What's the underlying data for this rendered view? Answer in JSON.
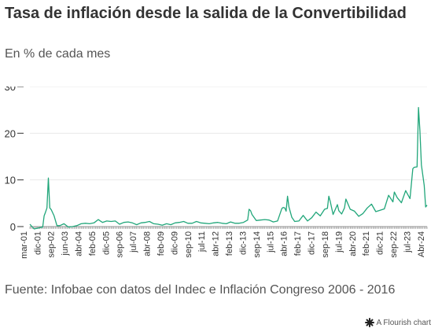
{
  "header": {
    "title": "Tasa de inflación desde la salida de la Convertibilidad",
    "subtitle": "En % de cada mes"
  },
  "footer": {
    "source": "Fuente: Infobae con datos del Indec e Inflación Congreso 2006 - 2016",
    "brand": "A Flourish chart"
  },
  "colors": {
    "line": "#21a67a",
    "grid": "#e8e8e8",
    "axis": "#333333"
  },
  "chart_data": {
    "type": "line",
    "title": "Tasa de inflación desde la salida de la Convertibilidad",
    "subtitle": "En % de cada mes",
    "xlabel": "",
    "ylabel": "",
    "ylim": [
      0,
      30
    ],
    "yticks": [
      0,
      10,
      20,
      30
    ],
    "grid": "horizontal",
    "xticks": [
      "mar-01",
      "dic-01",
      "sep-02",
      "jun-03",
      "abr-04",
      "feb-05",
      "dic-05",
      "sep-06",
      "jul-07",
      "abr-08",
      "feb-09",
      "dic-09",
      "sep-10",
      "jul-11",
      "abr-12",
      "feb-13",
      "dic-13",
      "sep-14",
      "jul-15",
      "abr-16",
      "feb-17",
      "dic-17",
      "sep-18",
      "jul-19",
      "abr-20",
      "feb-21",
      "dic-21",
      "sep-22",
      "jul-23",
      "Abr-24"
    ],
    "series": [
      {
        "values_monthly_from": "2001-03",
        "x": [
          "2001-03",
          "2001-06",
          "2001-09",
          "2001-12",
          "2002-01",
          "2002-02",
          "2002-03",
          "2002-04",
          "2002-05",
          "2002-06",
          "2002-08",
          "2002-10",
          "2002-12",
          "2003-03",
          "2003-06",
          "2003-09",
          "2003-12",
          "2004-03",
          "2004-06",
          "2004-09",
          "2004-12",
          "2005-03",
          "2005-06",
          "2005-09",
          "2005-12",
          "2006-03",
          "2006-06",
          "2006-09",
          "2006-12",
          "2007-03",
          "2007-06",
          "2007-09",
          "2007-12",
          "2008-03",
          "2008-06",
          "2008-09",
          "2008-12",
          "2009-03",
          "2009-06",
          "2009-09",
          "2009-12",
          "2010-03",
          "2010-06",
          "2010-09",
          "2010-12",
          "2011-03",
          "2011-06",
          "2011-09",
          "2011-12",
          "2012-03",
          "2012-06",
          "2012-09",
          "2012-12",
          "2013-03",
          "2013-06",
          "2013-09",
          "2013-12",
          "2014-01",
          "2014-02",
          "2014-03",
          "2014-06",
          "2014-09",
          "2014-12",
          "2015-03",
          "2015-06",
          "2015-09",
          "2015-12",
          "2016-01",
          "2016-02",
          "2016-03",
          "2016-04",
          "2016-05",
          "2016-06",
          "2016-07",
          "2016-09",
          "2016-12",
          "2017-03",
          "2017-06",
          "2017-09",
          "2017-12",
          "2018-03",
          "2018-06",
          "2018-08",
          "2018-09",
          "2018-10",
          "2018-12",
          "2019-03",
          "2019-04",
          "2019-06",
          "2019-08",
          "2019-09",
          "2019-12",
          "2020-03",
          "2020-06",
          "2020-09",
          "2020-12",
          "2021-03",
          "2021-06",
          "2021-09",
          "2021-12",
          "2022-03",
          "2022-06",
          "2022-07",
          "2022-09",
          "2022-12",
          "2023-03",
          "2023-06",
          "2023-08",
          "2023-09",
          "2023-11",
          "2023-12",
          "2024-01",
          "2024-02",
          "2024-03",
          "2024-04",
          "2024-05",
          "2024-06"
        ],
        "y": [
          0.5,
          -0.5,
          -0.3,
          -0.1,
          2.3,
          3.1,
          4.0,
          10.4,
          4.0,
          3.6,
          2.3,
          0.2,
          0.2,
          0.6,
          -0.1,
          0.0,
          0.2,
          0.6,
          0.7,
          0.6,
          0.8,
          1.5,
          0.9,
          1.2,
          1.1,
          1.2,
          0.5,
          0.9,
          1.0,
          0.8,
          0.4,
          0.8,
          0.9,
          1.1,
          0.6,
          0.5,
          0.3,
          0.6,
          0.4,
          0.8,
          0.9,
          1.1,
          0.7,
          0.7,
          1.1,
          0.8,
          0.7,
          0.6,
          0.8,
          0.9,
          0.7,
          0.6,
          1.0,
          0.7,
          0.7,
          0.9,
          1.4,
          3.7,
          3.4,
          2.6,
          1.3,
          1.4,
          1.5,
          1.4,
          1.0,
          1.2,
          3.9,
          4.1,
          4.0,
          3.3,
          6.5,
          4.2,
          3.1,
          2.0,
          1.1,
          1.2,
          2.4,
          1.2,
          1.9,
          3.1,
          2.3,
          3.7,
          3.9,
          6.5,
          5.4,
          2.6,
          4.7,
          3.4,
          2.7,
          4.0,
          5.9,
          3.7,
          3.3,
          2.2,
          2.8,
          4.0,
          4.8,
          3.2,
          3.5,
          3.8,
          6.7,
          5.3,
          7.4,
          6.2,
          5.1,
          7.7,
          6.0,
          12.4,
          12.7,
          12.8,
          25.5,
          20.6,
          13.2,
          11.0,
          8.8,
          4.2,
          4.6
        ]
      }
    ]
  }
}
